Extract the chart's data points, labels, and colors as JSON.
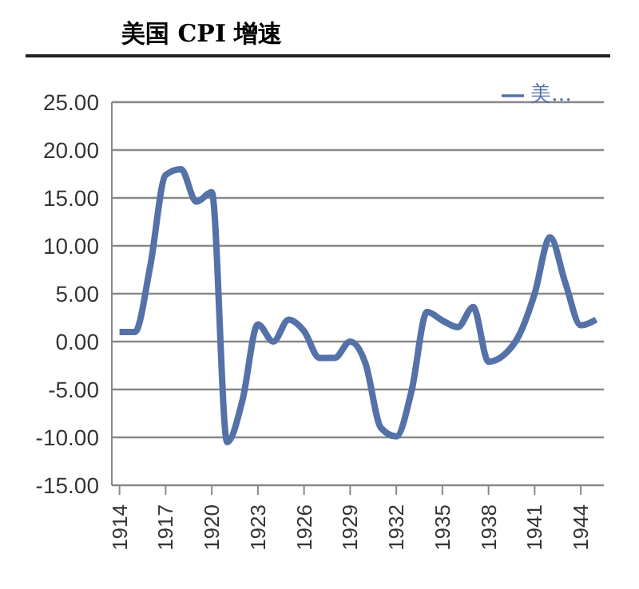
{
  "chart_data": {
    "type": "line",
    "title": "美国 CPI 增速",
    "x": [
      1914,
      1915,
      1916,
      1917,
      1918,
      1919,
      1920,
      1921,
      1922,
      1923,
      1924,
      1925,
      1926,
      1927,
      1928,
      1929,
      1930,
      1931,
      1932,
      1933,
      1934,
      1935,
      1936,
      1937,
      1938,
      1939,
      1940,
      1941,
      1942,
      1943,
      1944,
      1945
    ],
    "series": [
      {
        "name": "美…",
        "color": "#5471a8",
        "values": [
          1.0,
          1.0,
          7.9,
          17.4,
          18.0,
          14.6,
          15.6,
          -10.5,
          -6.1,
          1.8,
          0.0,
          2.3,
          1.1,
          -1.7,
          -1.7,
          0.0,
          -2.3,
          -9.0,
          -9.9,
          -5.1,
          3.1,
          2.2,
          1.5,
          3.6,
          -2.1,
          -1.4,
          0.7,
          5.0,
          10.9,
          6.1,
          1.7,
          2.3
        ]
      }
    ],
    "xlim": [
      1913.5,
      1945.5
    ],
    "xticks": [
      1914,
      1917,
      1920,
      1923,
      1926,
      1929,
      1932,
      1935,
      1938,
      1941,
      1944
    ],
    "ylim": [
      -15,
      25
    ],
    "yticks": [
      {
        "value": -15,
        "label": "-15.00"
      },
      {
        "value": -10,
        "label": "-10.00"
      },
      {
        "value": -5,
        "label": "-5.00"
      },
      {
        "value": 0,
        "label": "0.00"
      },
      {
        "value": 5,
        "label": "5.00"
      },
      {
        "value": 10,
        "label": "10.00"
      },
      {
        "value": 15,
        "label": "15.00"
      },
      {
        "value": 20,
        "label": "20.00"
      },
      {
        "value": 25,
        "label": "25.00"
      }
    ],
    "grid": "y",
    "legend": "top right",
    "marker": "none",
    "line_style": "solid"
  }
}
